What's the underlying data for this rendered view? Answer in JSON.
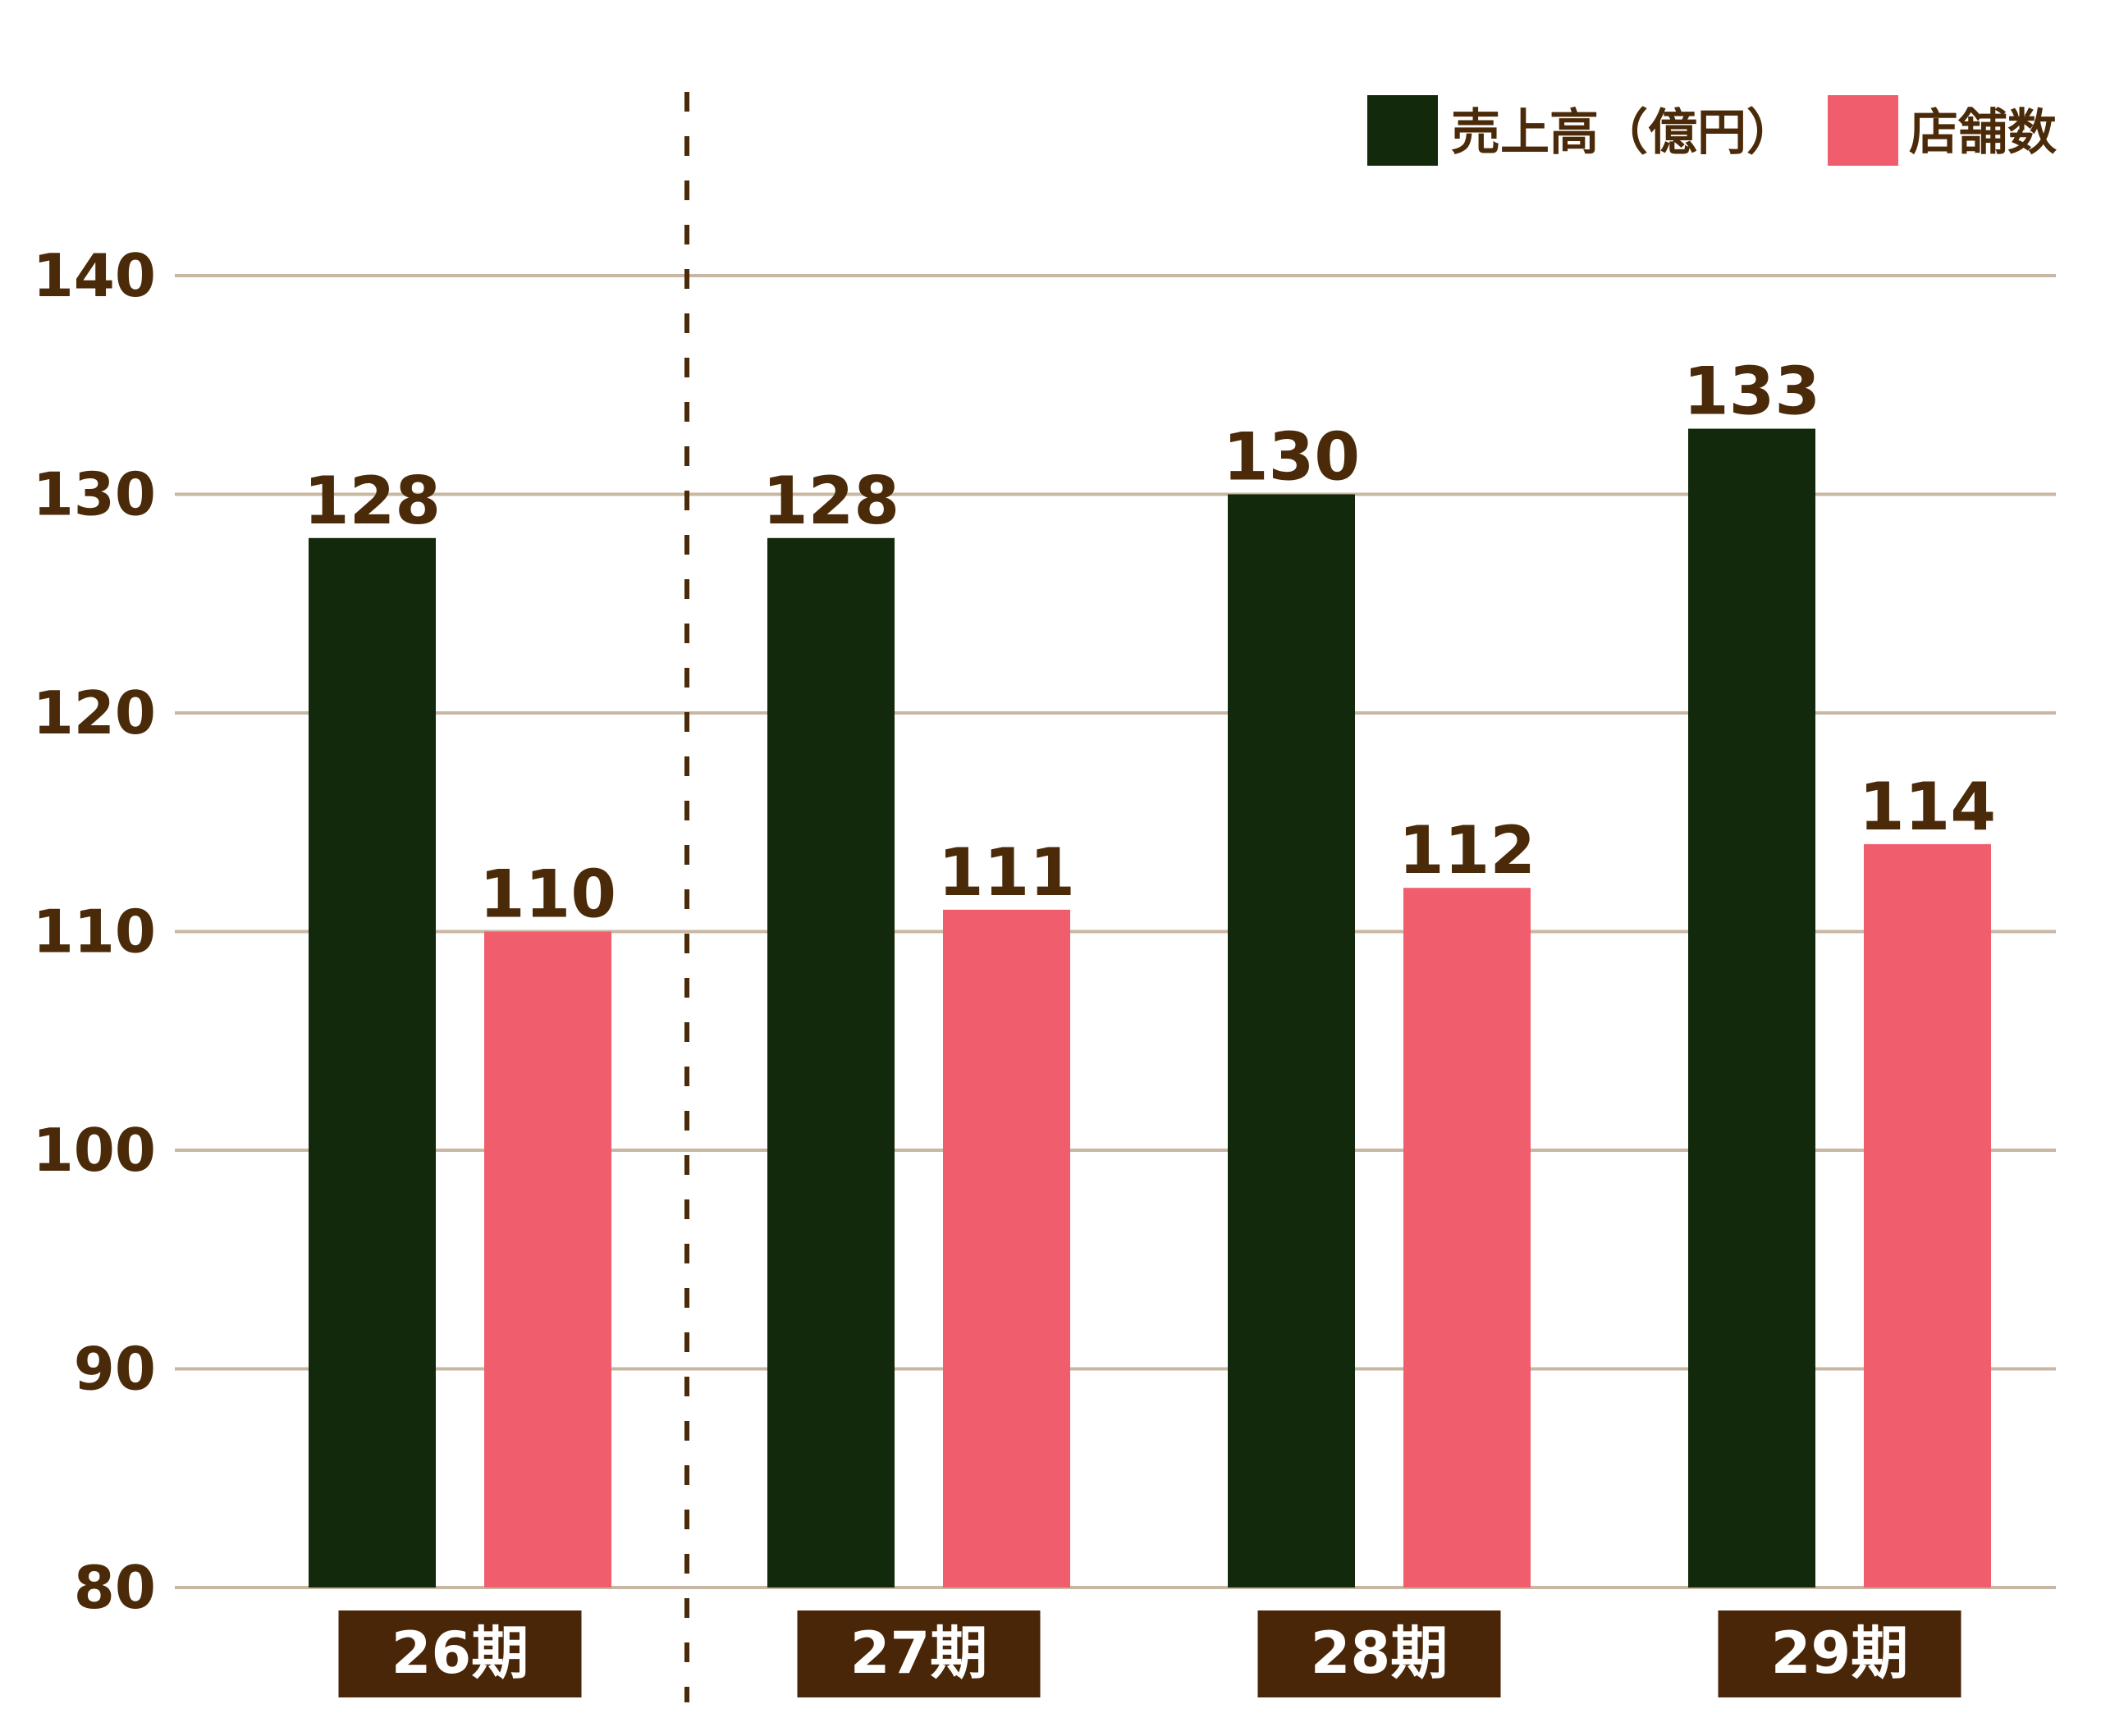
{
  "chart_data": {
    "type": "bar",
    "categories": [
      "26期",
      "27期",
      "28期",
      "29期"
    ],
    "series": [
      {
        "name": "売上高（億円）",
        "values": [
          128,
          128,
          130,
          133
        ],
        "color": "#13290b"
      },
      {
        "name": "店舗数",
        "values": [
          110,
          111,
          112,
          114
        ],
        "color": "#f05e6e"
      }
    ],
    "ylim": [
      80,
      140
    ],
    "yticks": [
      80,
      90,
      100,
      110,
      120,
      130,
      140
    ],
    "grid": true,
    "legend_position": "top-right",
    "divider_after_category": "26期",
    "colors": {
      "grid": "#c8b7a2",
      "text": "#4a2a08",
      "category_label_bg": "#4a2608",
      "category_label_text": "#ffffff",
      "divider": "#4a2a08"
    }
  }
}
